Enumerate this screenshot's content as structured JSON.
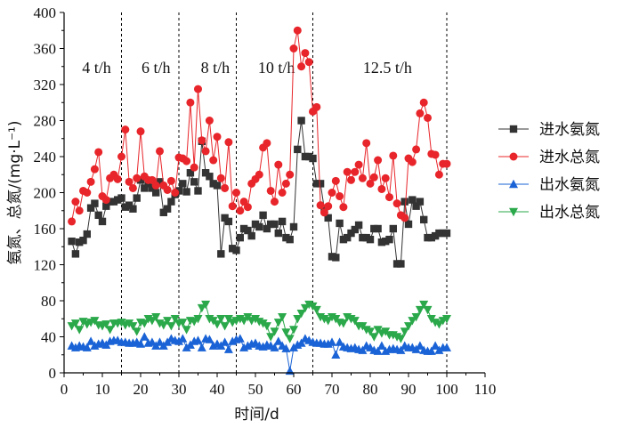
{
  "chart_data": {
    "type": "line",
    "xlabel": "时间/d",
    "ylabel": "氨氮、总氮/(mg·L⁻¹)",
    "xlim": [
      0,
      110
    ],
    "ylim": [
      0,
      400
    ],
    "x_ticks": [
      "0",
      "10",
      "20",
      "30",
      "40",
      "50",
      "60",
      "70",
      "80",
      "90",
      "100",
      "110"
    ],
    "y_ticks": [
      "0",
      "40",
      "80",
      "120",
      "160",
      "200",
      "240",
      "280",
      "320",
      "360",
      "400"
    ],
    "grid": false,
    "legend_position": "right",
    "phase_boundaries": [
      15,
      30,
      45,
      65,
      100
    ],
    "phases": [
      {
        "label": "4 t/h",
        "x_center": 8.5
      },
      {
        "label": "6 t/h",
        "x_center": 24
      },
      {
        "label": "8 t/h",
        "x_center": 39.5
      },
      {
        "label": "10 t/h",
        "x_center": 55.5
      },
      {
        "label": "12.5 t/h",
        "x_center": 84.5
      }
    ],
    "x": [
      2,
      3,
      4,
      5,
      6,
      7,
      8,
      9,
      10,
      11,
      12,
      13,
      14,
      15,
      16,
      17,
      18,
      19,
      20,
      21,
      22,
      23,
      24,
      25,
      26,
      27,
      28,
      29,
      30,
      31,
      32,
      33,
      34,
      35,
      36,
      37,
      38,
      39,
      40,
      41,
      42,
      43,
      44,
      45,
      46,
      47,
      48,
      49,
      50,
      51,
      52,
      53,
      54,
      55,
      56,
      57,
      58,
      59,
      60,
      61,
      62,
      63,
      64,
      65,
      66,
      67,
      68,
      69,
      70,
      71,
      72,
      73,
      74,
      75,
      76,
      77,
      78,
      79,
      80,
      81,
      82,
      83,
      84,
      85,
      86,
      87,
      88,
      89,
      90,
      91,
      92,
      93,
      94,
      95,
      96,
      97,
      98,
      99,
      100
    ],
    "series": [
      {
        "name": "进水氨氮",
        "color": "#333333",
        "marker": "square",
        "values": [
          146,
          132,
          145,
          147,
          154,
          183,
          188,
          175,
          168,
          185,
          190,
          190,
          192,
          194,
          184,
          186,
          182,
          194,
          214,
          205,
          210,
          205,
          200,
          212,
          178,
          182,
          190,
          198,
          202,
          210,
          201,
          222,
          212,
          202,
          257,
          222,
          218,
          210,
          208,
          132,
          172,
          168,
          138,
          136,
          150,
          160,
          158,
          152,
          165,
          162,
          175,
          160,
          165,
          165,
          155,
          168,
          150,
          148,
          162,
          248,
          280,
          240,
          240,
          238,
          210,
          210,
          182,
          172,
          129,
          128,
          166,
          148,
          150,
          155,
          159,
          164,
          150,
          150,
          148,
          160,
          160,
          145,
          146,
          148,
          160,
          121,
          121,
          190,
          165,
          192,
          185,
          190,
          170,
          150,
          150,
          152,
          155,
          155,
          155
        ]
      },
      {
        "name": "进水总氮",
        "color": "#e8252a",
        "marker": "circle",
        "values": [
          168,
          190,
          180,
          202,
          200,
          212,
          226,
          245,
          196,
          192,
          216,
          220,
          215,
          240,
          270,
          212,
          205,
          216,
          268,
          218,
          214,
          214,
          208,
          246,
          208,
          203,
          213,
          200,
          239,
          238,
          235,
          300,
          228,
          315,
          258,
          246,
          280,
          236,
          262,
          216,
          205,
          256,
          185,
          200,
          180,
          190,
          184,
          210,
          215,
          220,
          250,
          255,
          202,
          190,
          231,
          200,
          210,
          220,
          360,
          380,
          340,
          355,
          345,
          290,
          295,
          186,
          178,
          185,
          200,
          213,
          196,
          184,
          223,
          214,
          223,
          231,
          216,
          255,
          210,
          217,
          236,
          204,
          216,
          195,
          241,
          188,
          175,
          172,
          238,
          234,
          248,
          288,
          300,
          283,
          243,
          242,
          220,
          232,
          232
        ]
      },
      {
        "name": "出水氨氮",
        "color": "#1a63d6",
        "marker": "triangle-up",
        "values": [
          30,
          28,
          30,
          29,
          28,
          35,
          30,
          32,
          33,
          31,
          35,
          36,
          36,
          34,
          34,
          33,
          33,
          34,
          32,
          40,
          33,
          34,
          30,
          34,
          30,
          34,
          38,
          36,
          35,
          38,
          28,
          31,
          35,
          36,
          28,
          38,
          37,
          30,
          32,
          30,
          34,
          26,
          35,
          37,
          38,
          28,
          30,
          32,
          33,
          30,
          29,
          31,
          30,
          28,
          35,
          30,
          27,
          2,
          28,
          31,
          33,
          38,
          36,
          34,
          33,
          33,
          32,
          32,
          34,
          20,
          34,
          29,
          28,
          27,
          28,
          26,
          25,
          30,
          28,
          25,
          24,
          30,
          24,
          26,
          27,
          26,
          25,
          30,
          28,
          28,
          26,
          30,
          25,
          24,
          24,
          30,
          25,
          28,
          28
        ]
      },
      {
        "name": "出水总氮",
        "color": "#2aa84a",
        "marker": "triangle-down",
        "values": [
          52,
          55,
          48,
          57,
          54,
          56,
          58,
          53,
          52,
          54,
          48,
          55,
          55,
          56,
          53,
          55,
          52,
          46,
          56,
          55,
          60,
          58,
          62,
          55,
          53,
          58,
          52,
          60,
          55,
          56,
          48,
          58,
          57,
          60,
          72,
          76,
          60,
          58,
          54,
          60,
          52,
          60,
          56,
          58,
          60,
          58,
          62,
          58,
          60,
          57,
          55,
          52,
          40,
          46,
          56,
          62,
          45,
          38,
          48,
          60,
          66,
          72,
          76,
          74,
          70,
          62,
          60,
          58,
          62,
          60,
          56,
          55,
          62,
          60,
          58,
          52,
          52,
          48,
          46,
          40,
          48,
          44,
          46,
          42,
          42,
          40,
          38,
          46,
          52,
          58,
          62,
          70,
          76,
          70,
          60,
          56,
          54,
          58,
          60
        ]
      }
    ]
  }
}
